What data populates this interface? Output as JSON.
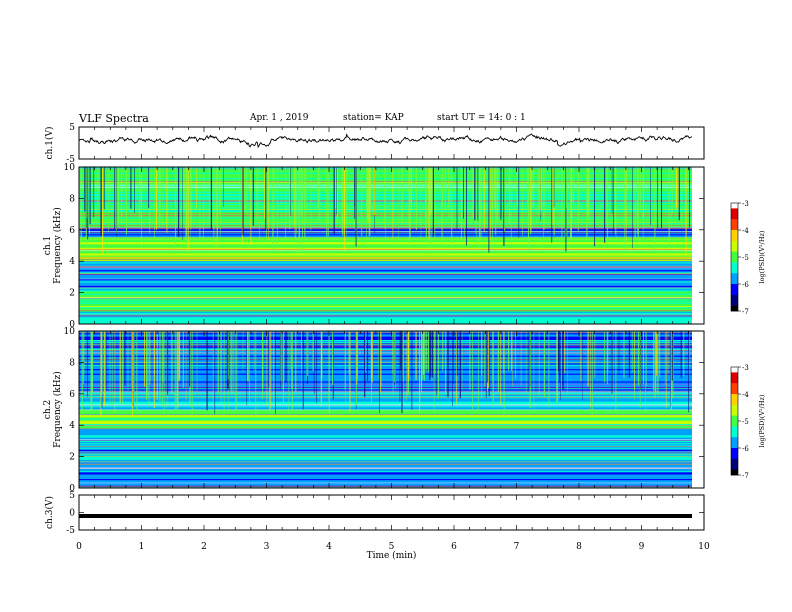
{
  "header": {
    "title": "VLF Spectra",
    "date": "Apr. 1  , 2019",
    "station": "station= KAP",
    "start": "start  UT =   14: 0  : 1"
  },
  "colors": {
    "trace": "#000000",
    "colormap": [
      "#00007a",
      "#0000ff",
      "#00a0ff",
      "#00ffd0",
      "#40ff40",
      "#c8ff00",
      "#ffd000",
      "#ff4000",
      "#e00000",
      "#ffffff"
    ]
  },
  "chart_data": [
    {
      "type": "line",
      "panel": "ch1-waveform",
      "ylabel": "ch.1(V)",
      "ylim": [
        -5,
        5
      ],
      "yticks": [
        "5",
        "-5"
      ],
      "xlim": [
        0,
        10
      ],
      "note_values": "y approx. 1 V mean, fluctuating between about -1 and 2"
    },
    {
      "type": "heatmap",
      "panel": "ch1-spectrogram",
      "ylabel": "ch.1\nFrequency (kHz)",
      "ylabel_line1": "ch.1",
      "ylabel_line2": "Frequency (kHz)",
      "ylim": [
        0,
        10
      ],
      "yticks": [
        "0",
        "2",
        "4",
        "6",
        "8",
        "10"
      ],
      "xlim": [
        0,
        10
      ],
      "colorbar": {
        "label": "log(PSD)(V²/Hz)",
        "range": [
          -7,
          -3
        ],
        "ticks": [
          "-3",
          "-4",
          "-5",
          "-6",
          "-7"
        ]
      }
    },
    {
      "type": "heatmap",
      "panel": "ch2-spectrogram",
      "ylabel_line1": "ch.2",
      "ylabel_line2": "Frequency (kHz)",
      "ylim": [
        0,
        10
      ],
      "yticks": [
        "0",
        "2",
        "4",
        "6",
        "8",
        "10"
      ],
      "xlim": [
        0,
        10
      ],
      "colorbar": {
        "label": "log(PSD)(V²/Hz)",
        "range": [
          -7,
          -3
        ],
        "ticks": [
          "-3",
          "-4",
          "-5",
          "-6",
          "-7"
        ]
      }
    },
    {
      "type": "line",
      "panel": "ch3-waveform",
      "ylabel": "ch.3(V)",
      "ylim": [
        -5,
        5
      ],
      "yticks": [
        "5",
        "0",
        "-5"
      ],
      "xlim": [
        0,
        10
      ],
      "constant_value": -1
    }
  ],
  "xaxis": {
    "label": "Time (min)",
    "ticks": [
      "0",
      "1",
      "2",
      "3",
      "4",
      "5",
      "6",
      "7",
      "8",
      "9",
      "10"
    ]
  }
}
